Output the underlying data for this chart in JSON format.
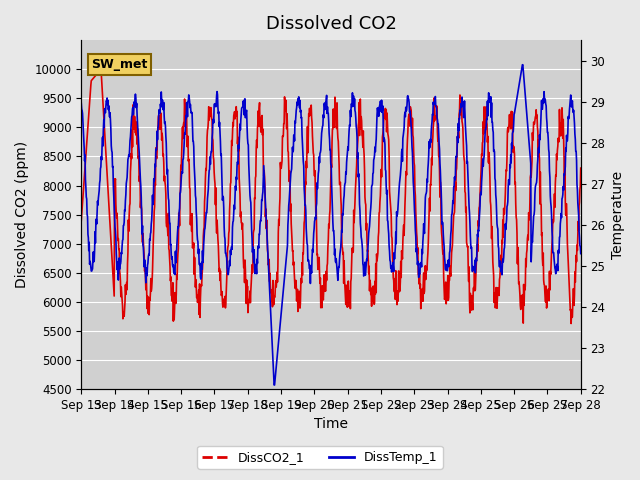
{
  "title": "Dissolved CO2",
  "xlabel": "Time",
  "ylabel_left": "Dissolved CO2 (ppm)",
  "ylabel_right": "Temperature",
  "annotation_text": "SW_met",
  "ylim_left": [
    4500,
    10500
  ],
  "ylim_right": [
    22.0,
    30.5
  ],
  "yticks_left": [
    4500,
    5000,
    5500,
    6000,
    6500,
    7000,
    7500,
    8000,
    8500,
    9000,
    9500,
    10000
  ],
  "yticks_right": [
    22.0,
    23.0,
    24.0,
    25.0,
    26.0,
    27.0,
    28.0,
    29.0,
    30.0
  ],
  "xtick_labels": [
    "Sep 13",
    "Sep 14",
    "Sep 15",
    "Sep 16",
    "Sep 17",
    "Sep 18",
    "Sep 19",
    "Sep 20",
    "Sep 21",
    "Sep 22",
    "Sep 23",
    "Sep 24",
    "Sep 25",
    "Sep 26",
    "Sep 27",
    "Sep 28"
  ],
  "legend_labels": [
    "DissCO2_1",
    "DissTemp_1"
  ],
  "color_co2": "#dd0000",
  "color_temp": "#0000cc",
  "background_color": "#e8e8e8",
  "plot_bg_color": "#d0d0d0",
  "grid_color": "#ffffff",
  "title_fontsize": 13,
  "label_fontsize": 10,
  "tick_fontsize": 8.5
}
